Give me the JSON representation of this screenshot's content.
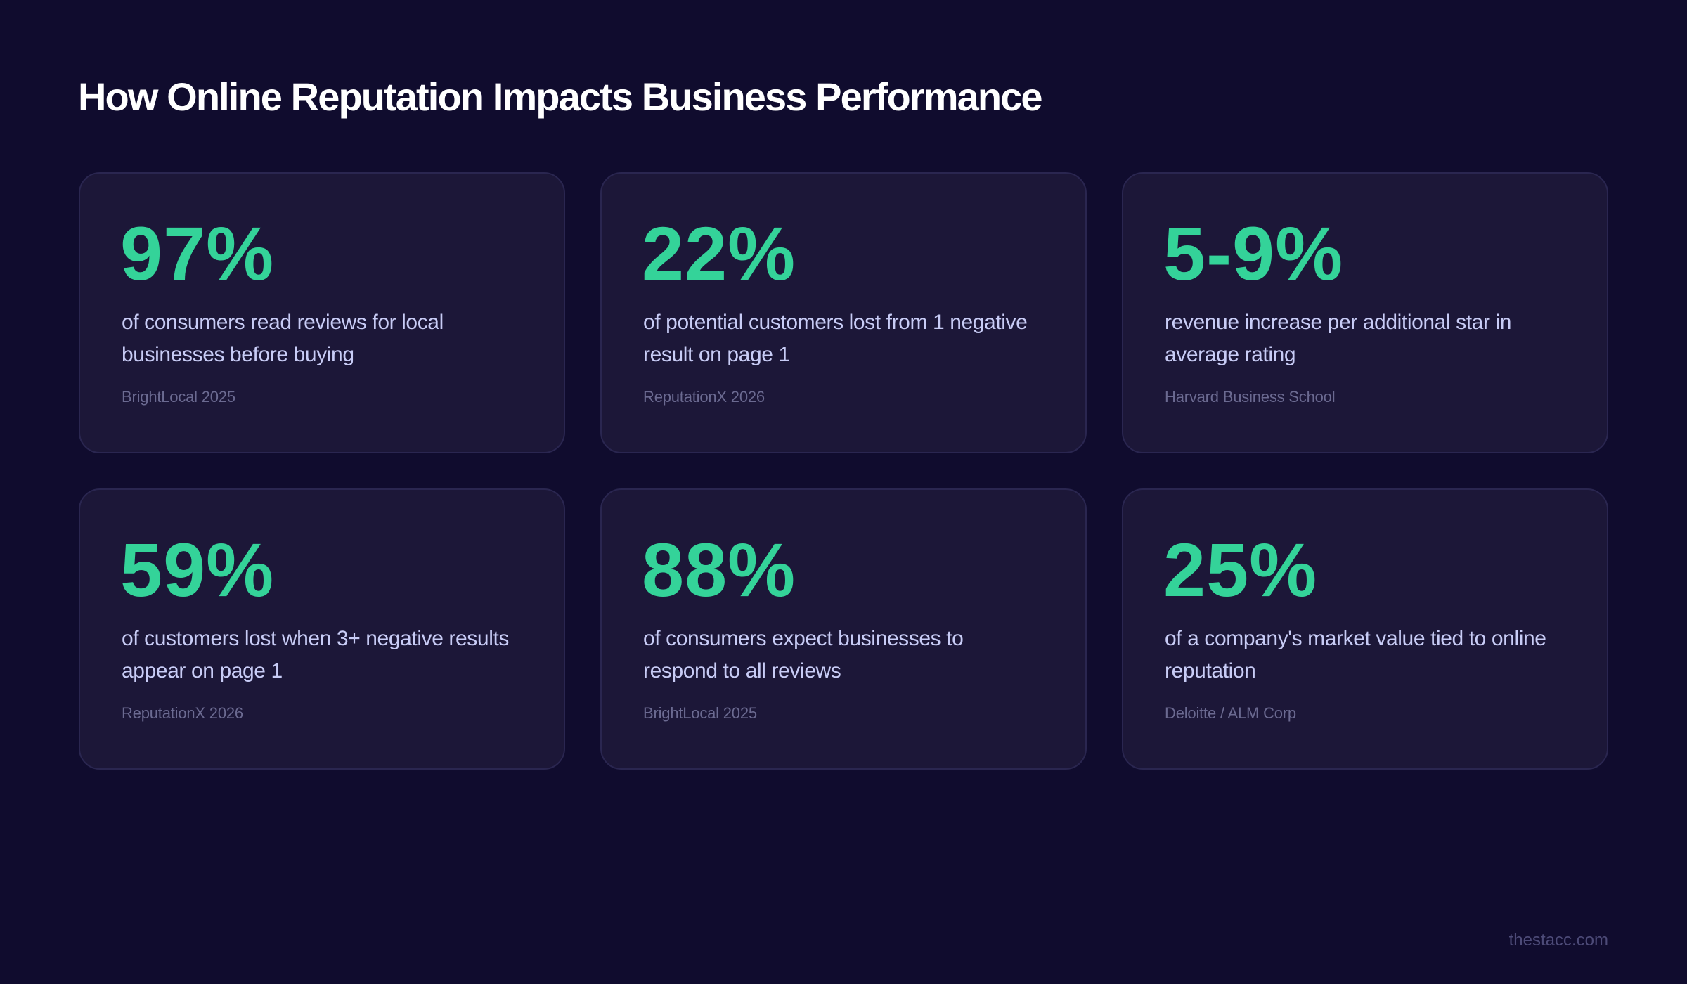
{
  "header": {
    "title": "How Online Reputation Impacts Business Performance"
  },
  "colors": {
    "background": "#100c2e",
    "card_background": "#1c1738",
    "card_border": "#2a2650",
    "accent": "#34d399",
    "title": "#ffffff",
    "description": "#c8ccf6",
    "source": "#6b6a91",
    "footer": "#4d4b78"
  },
  "stats": [
    {
      "value": "97%",
      "description": "of consumers read reviews for local businesses before buying",
      "source": "BrightLocal 2025"
    },
    {
      "value": "22%",
      "description": "of potential customers lost from 1 negative result on page 1",
      "source": "ReputationX 2026"
    },
    {
      "value": "5-9%",
      "description": "revenue increase per additional star in average rating",
      "source": "Harvard Business School"
    },
    {
      "value": "59%",
      "description": "of customers lost when 3+ negative results appear on page 1",
      "source": "ReputationX 2026"
    },
    {
      "value": "88%",
      "description": "of consumers expect businesses to respond to all reviews",
      "source": "BrightLocal 2025"
    },
    {
      "value": "25%",
      "description": "of a company's market value tied to online reputation",
      "source": "Deloitte / ALM Corp"
    }
  ],
  "footer": {
    "brand": "thestacc.com"
  }
}
